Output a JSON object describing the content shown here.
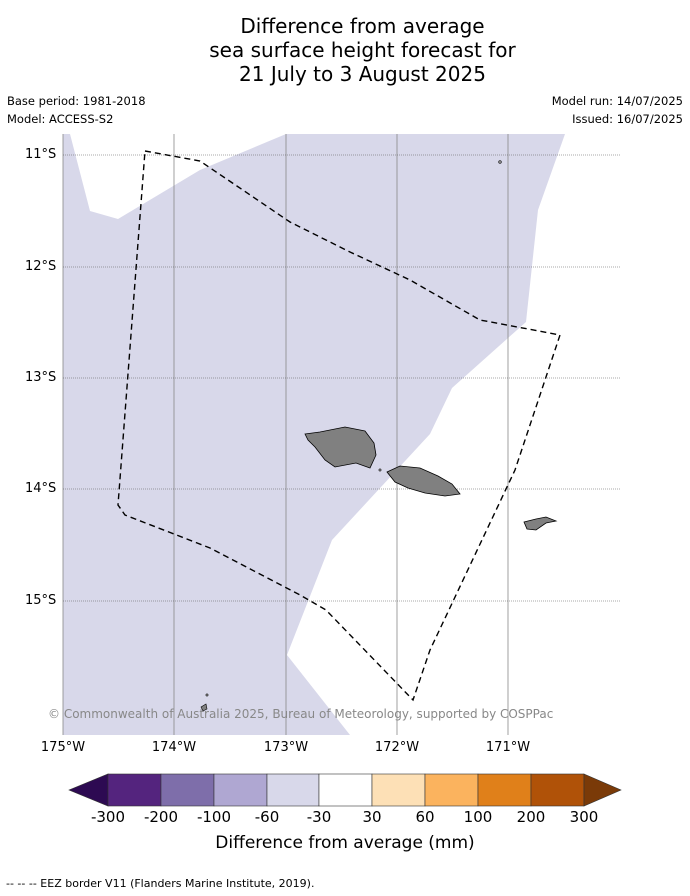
{
  "title": {
    "line1": "Difference from average",
    "line2": "sea surface height forecast for",
    "line3": "21 July to 3 August 2025"
  },
  "meta": {
    "base_period": "Base period: 1981-2018",
    "model": "Model: ACCESS-S2",
    "model_run": "Model run: 14/07/2025",
    "issued": "Issued: 16/07/2025"
  },
  "axes": {
    "lat_labels": [
      "11°S",
      "12°S",
      "13°S",
      "14°S",
      "15°S"
    ],
    "lon_labels": [
      "175°W",
      "174°W",
      "173°W",
      "172°W",
      "171°W"
    ],
    "lon_range": [
      -175,
      -170
    ],
    "lat_range": [
      -16.2,
      -10.8
    ]
  },
  "copyright": "© Commonwealth of Australia 2025, Bureau of Meteorology, supported by COSPPac",
  "colorbar": {
    "title": "Difference from average (mm)",
    "tick_labels": [
      "-300",
      "-200",
      "-100",
      "-60",
      "-30",
      "30",
      "60",
      "100",
      "200",
      "300"
    ],
    "colors": [
      "#2d0a52",
      "#54247e",
      "#7e6eaa",
      "#afa7d2",
      "#d8d8ea",
      "#ffffff",
      "#fde0b6",
      "#fbb35e",
      "#e0801a",
      "#b05208",
      "#7a3a08"
    ]
  },
  "map": {
    "shaded_class_color": "#d8d8ea",
    "land_color": "#808080"
  },
  "footer": "--  --  -- EEZ border V11 (Flanders Marine Institute, 2019)."
}
